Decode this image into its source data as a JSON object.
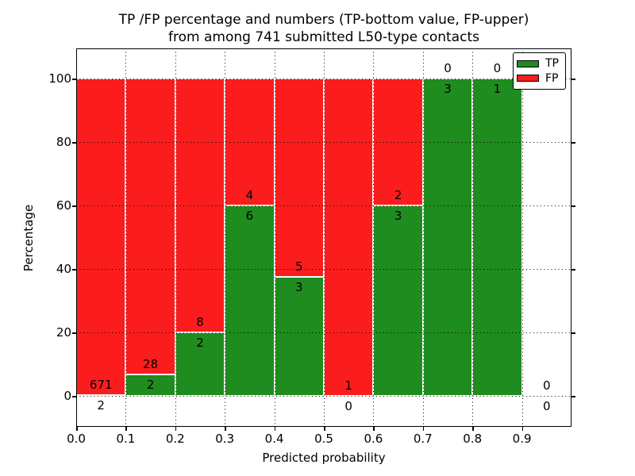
{
  "title": {
    "line1": "TP /FP percentage and numbers (TP-bottom value, FP-upper)",
    "line2": "from among 741 submitted L50-type contacts"
  },
  "axes": {
    "xlabel": "Predicted probability",
    "ylabel": "Percentage",
    "xtick_labels": [
      "0.0",
      "0.1",
      "0.2",
      "0.3",
      "0.4",
      "0.5",
      "0.6",
      "0.7",
      "0.8",
      "0.9"
    ],
    "ytick_labels": [
      "0",
      "20",
      "40",
      "60",
      "80",
      "100"
    ]
  },
  "legend": {
    "position": "upper right",
    "items": [
      {
        "label": "TP",
        "color": "#1e8c1e"
      },
      {
        "label": "FP",
        "color": "#fb1d1d"
      }
    ]
  },
  "colors": {
    "tp": "#1e8c1e",
    "fp": "#fb1d1d",
    "bar_edge": "#ffffff",
    "frame": "#000000",
    "background": "#ffffff"
  },
  "chart_data": {
    "type": "bar",
    "stacked_percentage": true,
    "title": "TP /FP percentage and numbers (TP-bottom value, FP-upper) from among 741 submitted L50-type contacts",
    "xlabel": "Predicted probability",
    "ylabel": "Percentage",
    "xlim": [
      0.0,
      1.0
    ],
    "ylim": [
      0,
      100
    ],
    "grid": true,
    "legend_position": "upper right",
    "total_contacts": 741,
    "bin_width": 0.1,
    "bin_edges": [
      0.0,
      0.1,
      0.2,
      0.3,
      0.4,
      0.5,
      0.6,
      0.7,
      0.8,
      0.9,
      1.0
    ],
    "series": [
      {
        "name": "TP",
        "color": "#1e8c1e",
        "counts": [
          2,
          2,
          2,
          6,
          3,
          0,
          3,
          3,
          1,
          0
        ]
      },
      {
        "name": "FP",
        "color": "#fb1d1d",
        "counts": [
          671,
          28,
          8,
          4,
          5,
          1,
          2,
          0,
          0,
          0
        ]
      }
    ],
    "tp_percent_per_bin": [
      0.3,
      6.67,
      20.0,
      60.0,
      37.5,
      0.0,
      60.0,
      100.0,
      100.0,
      null
    ],
    "label_convention": "TP count printed below boundary, FP count printed above boundary"
  }
}
